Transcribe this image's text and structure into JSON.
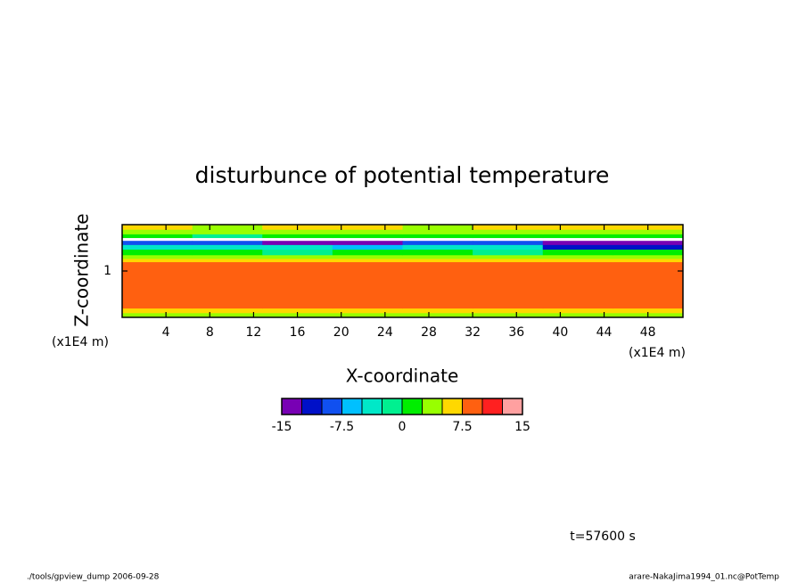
{
  "chart_data": {
    "type": "contour",
    "title": "disturbunce of potential temperature",
    "xlabel": "X-coordinate",
    "ylabel": "Z-coordinate",
    "xunit": "(x1E4 m)",
    "yunit": "(x1E4 m)",
    "xlim": [
      0,
      51.2
    ],
    "xticks": [
      4,
      8,
      12,
      16,
      20,
      24,
      28,
      32,
      36,
      40,
      44,
      48
    ],
    "ylim": [
      0,
      2
    ],
    "yticks": [
      1
    ],
    "field": {
      "x": [
        0,
        6.4,
        12.8,
        19.2,
        25.6,
        32,
        38.4,
        44.8,
        51.2
      ],
      "z": [
        0,
        0.1,
        0.2,
        1.2,
        1.27,
        1.35,
        1.47,
        1.57,
        1.65,
        1.72,
        1.8,
        1.9,
        2.0
      ],
      "values": [
        [
          3,
          3,
          3,
          3,
          3,
          3,
          3,
          3
        ],
        [
          6,
          6,
          6,
          6,
          6,
          6,
          6,
          6
        ],
        [
          8,
          8,
          8,
          8,
          8,
          8,
          8,
          8
        ],
        [
          6,
          6,
          6,
          6,
          6,
          6,
          6,
          6
        ],
        [
          3,
          3,
          3,
          3,
          3,
          3,
          3,
          3
        ],
        [
          1,
          1,
          -1,
          1,
          1,
          -1,
          1,
          1
        ],
        [
          -4,
          -4,
          -4,
          -6,
          -4,
          -4,
          -11,
          -11
        ],
        [
          -9,
          -9,
          -14,
          -14,
          -9,
          -9,
          -14,
          -14
        ],
        [
          null,
          null,
          null,
          null,
          null,
          null,
          null,
          null
        ],
        [
          1,
          -1,
          1,
          1,
          1,
          1,
          1,
          1
        ],
        [
          3,
          3,
          3,
          3,
          3,
          3,
          3,
          3
        ],
        [
          6,
          3,
          6,
          6,
          3,
          6,
          6,
          6
        ]
      ]
    },
    "levels": [
      -15,
      -12.5,
      -10,
      -7.5,
      -5,
      -2.5,
      0,
      2.5,
      5,
      7.5,
      10,
      12.5,
      15
    ],
    "colors": [
      "#7800b4",
      "#0010c8",
      "#1050f0",
      "#00c0ff",
      "#00e8c8",
      "#00f090",
      "#00ee00",
      "#98ff00",
      "#ffd800",
      "#ff6010",
      "#ff2020",
      "#ffa0a0"
    ],
    "cbticks": [
      -15,
      -7.5,
      0,
      7.5,
      15
    ],
    "annotations": [
      "t=57600 s",
      "./tools/gpview_dump  2006-09-28",
      "arare-NakaJima1994_01.nc@PotTemp"
    ]
  }
}
